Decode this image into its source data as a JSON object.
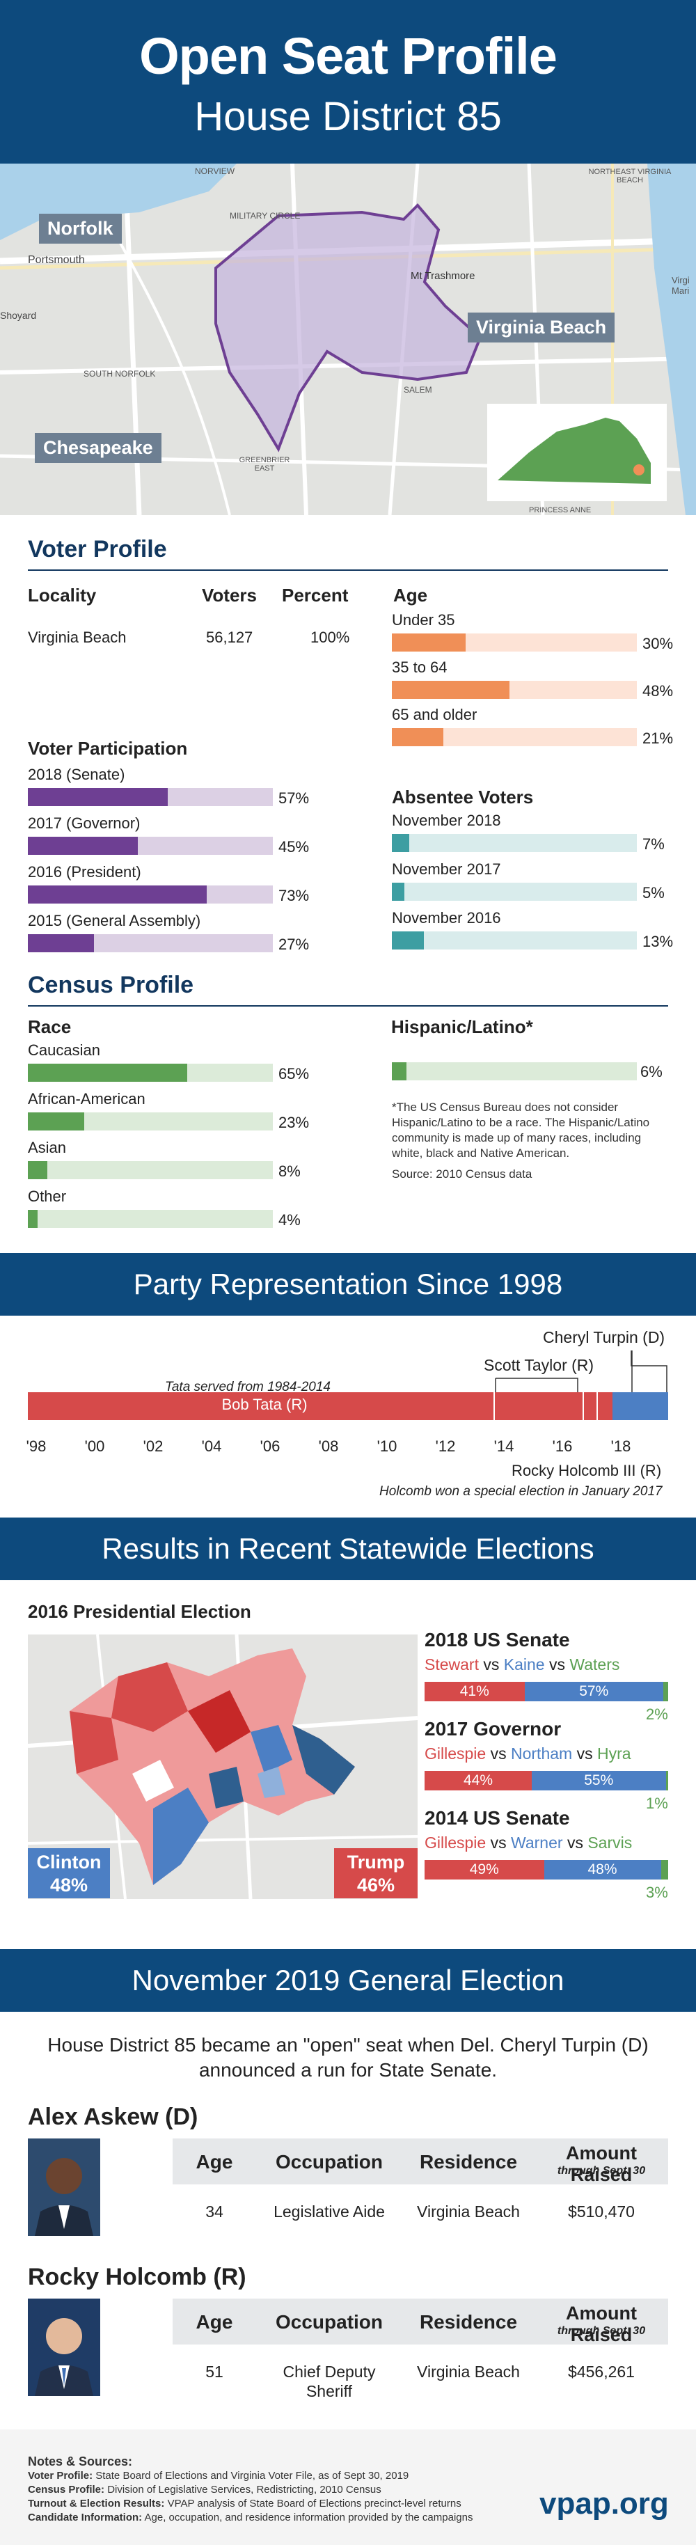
{
  "header": {
    "title": "Open Seat Profile",
    "subtitle": "House District 85"
  },
  "map_labels": {
    "norfolk": "Norfolk",
    "virginia_beach": "Virginia Beach",
    "chesapeake": "Chesapeake",
    "portsmouth": "Portsmouth",
    "shoyard": "Shoyard",
    "military_circle": "MILITARY CIRCLE",
    "mt_trashmore": "Mt Trashmore",
    "salem": "SALEM",
    "princess_anne": "PRINCESS ANNE",
    "greenbrier_east": "GREENBRIER EAST",
    "south_norfolk": "SOUTH NORFOLK",
    "norview": "NORVIEW",
    "virginia_ma": "Virgi Mari",
    "northeast": "NORTHEAST VIRGINIA BEACH"
  },
  "voter_profile": {
    "title": "Voter Profile",
    "headers": {
      "locality": "Locality",
      "voters": "Voters",
      "percent": "Percent"
    },
    "row": {
      "locality": "Virginia Beach",
      "voters": "56,127",
      "percent": "100%"
    },
    "participation_title": "Voter Participation",
    "participation": [
      {
        "label": "2018 (Senate)",
        "value": 57,
        "text": "57%"
      },
      {
        "label": "2017 (Governor)",
        "value": 45,
        "text": "45%"
      },
      {
        "label": "2016 (President)",
        "value": 73,
        "text": "73%"
      },
      {
        "label": "2015 (General Assembly)",
        "value": 27,
        "text": "27%"
      }
    ],
    "age_title": "Age",
    "age": [
      {
        "label": "Under 35",
        "value": 30,
        "text": "30%"
      },
      {
        "label": "35 to 64",
        "value": 48,
        "text": "48%"
      },
      {
        "label": "65 and older",
        "value": 21,
        "text": "21%"
      }
    ],
    "absentee_title": "Absentee Voters",
    "absentee": [
      {
        "label": "November 2018",
        "value": 7,
        "text": "7%"
      },
      {
        "label": "November 2017",
        "value": 5,
        "text": "5%"
      },
      {
        "label": "November 2016",
        "value": 13,
        "text": "13%"
      }
    ]
  },
  "census": {
    "title": "Census Profile",
    "race_title": "Race",
    "race": [
      {
        "label": "Caucasian",
        "value": 65,
        "text": "65%"
      },
      {
        "label": "African-American",
        "value": 23,
        "text": "23%"
      },
      {
        "label": "Asian",
        "value": 8,
        "text": "8%"
      },
      {
        "label": "Other",
        "value": 4,
        "text": "4%"
      }
    ],
    "hispanic_title": "Hispanic/Latino*",
    "hispanic": {
      "value": 6,
      "text": "6%"
    },
    "footnote": "*The US Census Bureau does not consider Hispanic/Latino to be a race. The Hispanic/Latino community is made up of many races, including white, black and Native American.",
    "source": "Source: 2010 Census data"
  },
  "party": {
    "title": "Party Representation Since 1998",
    "tata_note": "Tata served from 1984-2014",
    "bob_tata": "Bob Tata (R)",
    "scott_taylor": "Scott Taylor (R)",
    "cheryl_turpin": "Cheryl Turpin (D)",
    "rocky": "Rocky Holcomb III (R)",
    "holcomb_note": "Holcomb won a special election in January 2017",
    "years": [
      "'98",
      "'00",
      "'02",
      "'04",
      "'06",
      "'08",
      "'10",
      "'12",
      "'14",
      "'16",
      "'18"
    ]
  },
  "results": {
    "title": "Results in Recent Statewide Elections",
    "pres_title": "2016 Presidential Election",
    "clinton": {
      "name": "Clinton",
      "pct": "48%"
    },
    "trump": {
      "name": "Trump",
      "pct": "46%"
    },
    "races": [
      {
        "title": "2018 US Senate",
        "r": "Stewart",
        "d": "Kaine",
        "o": "Waters",
        "vs": "vs",
        "r_val": 41,
        "d_val": 57,
        "o_val": 2,
        "r_text": "41%",
        "d_text": "57%",
        "o_text": "2%"
      },
      {
        "title": "2017 Governor",
        "r": "Gillespie",
        "d": "Northam",
        "o": "Hyra",
        "vs": "vs",
        "r_val": 44,
        "d_val": 55,
        "o_val": 1,
        "r_text": "44%",
        "d_text": "55%",
        "o_text": "1%"
      },
      {
        "title": "2014 US Senate",
        "r": "Gillespie",
        "d": "Warner",
        "o": "Sarvis",
        "vs": "vs",
        "r_val": 49,
        "d_val": 48,
        "o_val": 3,
        "r_text": "49%",
        "d_text": "48%",
        "o_text": "3%"
      }
    ]
  },
  "general": {
    "title": "November 2019 General Election",
    "intro": "House District 85 became an \"open\" seat when Del. Cheryl Turpin (D) announced a run for State Senate.",
    "headers": {
      "age": "Age",
      "occupation": "Occupation",
      "residence": "Residence",
      "amount": "Amount Raised",
      "amount_note": "through Sept. 30"
    },
    "candidates": [
      {
        "name": "Alex Askew (D)",
        "age": "34",
        "occupation": "Legislative Aide",
        "residence": "Virginia Beach",
        "amount": "$510,470"
      },
      {
        "name": "Rocky Holcomb (R)",
        "age": "51",
        "occupation1": "Chief Deputy",
        "occupation2": "Sheriff",
        "residence": "Virginia Beach",
        "amount": "$456,261"
      }
    ]
  },
  "notes": {
    "title": "Notes & Sources:",
    "lines": [
      {
        "k": "Voter Profile:",
        "v": " State Board of Elections and Virginia Voter File, as of Sept 30, 2019"
      },
      {
        "k": "Census Profile:",
        "v": " Division of Legislative Services, Redistricting, 2010 Census"
      },
      {
        "k": "Turnout & Election Results:",
        "v": " VPAP analysis of State Board of Elections precinct-level returns"
      },
      {
        "k": "Candidate Information:",
        "v": " Age, occupation, and residence information provided by the campaigns"
      }
    ],
    "logo": "vpap.org"
  },
  "colors": {
    "navy": "#0d4a7d",
    "purple": "#6e3f93",
    "purple_light": "#dcd0e4",
    "orange": "#f08f57",
    "orange_light": "#fde3d6",
    "teal": "#3d9ea2",
    "teal_light": "#d9ecec",
    "green": "#5ca153",
    "green_light": "#dcebd9",
    "red": "#d64a4a",
    "blue": "#4c7fc4"
  }
}
